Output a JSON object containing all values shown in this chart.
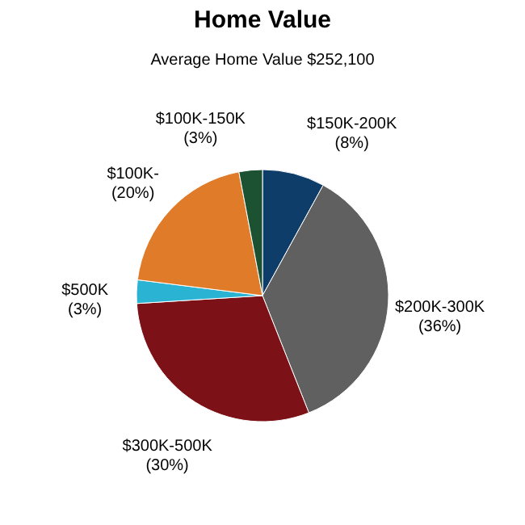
{
  "chart_data": {
    "type": "pie",
    "title": "Home Value",
    "subtitle": "Average Home Value  $252,100",
    "categories": [
      "$150K-200K",
      "$200K-300K",
      "$300K-500K",
      "$500K",
      "$100K-",
      "$100K-150K"
    ],
    "values": [
      8,
      36,
      30,
      3,
      20,
      3
    ],
    "colors": [
      "#0f3d6a",
      "#606060",
      "#7c1217",
      "#2bb3d4",
      "#e07b2a",
      "#1c5232"
    ],
    "value_labels": [
      "(8%)",
      "(36%)",
      "(30%)",
      "(3%)",
      "(20%)",
      "(3%)"
    ],
    "legend": false
  }
}
